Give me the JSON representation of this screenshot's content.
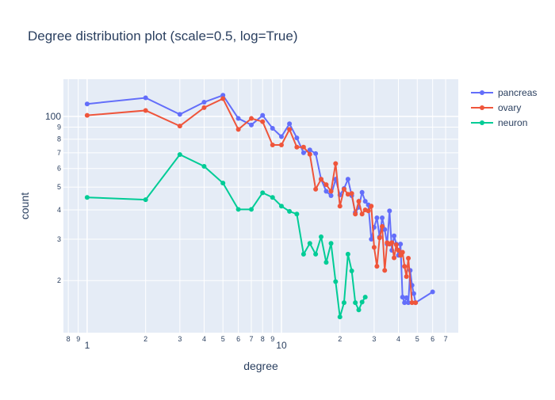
{
  "chart_data": {
    "type": "line",
    "title": "Degree distribution plot (scale=0.5, log=True)",
    "x_label": "degree",
    "y_label": "count",
    "xlog": true,
    "ylog": true,
    "grid": true,
    "legend": "top-right",
    "xlim": [
      0.755,
      81.3
    ],
    "ylim": [
      12,
      144
    ],
    "xticks": [
      {
        "value": 0.8,
        "label": "8"
      },
      {
        "value": 0.9,
        "label": "9"
      },
      1,
      {
        "value": 2,
        "label": "2"
      },
      {
        "value": 3,
        "label": "3"
      },
      {
        "value": 4,
        "label": "4"
      },
      {
        "value": 5,
        "label": "5"
      },
      {
        "value": 6,
        "label": "6"
      },
      {
        "value": 7,
        "label": "7"
      },
      {
        "value": 8,
        "label": "8"
      },
      {
        "value": 9,
        "label": "9"
      },
      10,
      {
        "value": 20,
        "label": "2"
      },
      {
        "value": 30,
        "label": "3"
      },
      {
        "value": 40,
        "label": "4"
      },
      {
        "value": 50,
        "label": "5"
      },
      {
        "value": 60,
        "label": "6"
      },
      {
        "value": 70,
        "label": "7"
      }
    ],
    "yticks": [
      {
        "value": 20,
        "label": "2"
      },
      {
        "value": 30,
        "label": "3"
      },
      {
        "value": 40,
        "label": "4"
      },
      {
        "value": 50,
        "label": "5"
      },
      {
        "value": 60,
        "label": "6"
      },
      {
        "value": 70,
        "label": "7"
      },
      {
        "value": 80,
        "label": "8"
      },
      {
        "value": 90,
        "label": "9"
      },
      100
    ],
    "series": [
      {
        "name": "pancreas",
        "color": "#636efa",
        "x": [
          1,
          2,
          3,
          4,
          5,
          6,
          7,
          8,
          9,
          10,
          11,
          12,
          13,
          14,
          15,
          16,
          17,
          18,
          19,
          20,
          21,
          22,
          23,
          24,
          25,
          26,
          27,
          28,
          29,
          30,
          31,
          32,
          33,
          34,
          35,
          36,
          37,
          38,
          39,
          40,
          41,
          42,
          43,
          44,
          45,
          46,
          47,
          48,
          49,
          60
        ],
        "values": [
          113,
          120,
          102,
          115,
          123,
          98,
          92,
          101,
          89,
          82,
          93,
          81,
          70,
          72,
          69.5,
          54,
          48,
          46,
          54,
          46.3,
          49.3,
          54,
          46,
          39,
          41,
          47.5,
          43.5,
          42,
          30,
          33.7,
          37,
          30.7,
          37,
          33,
          28.6,
          39.6,
          26.9,
          31,
          28.6,
          25.6,
          28.6,
          17,
          16.1,
          16.9,
          16.1,
          22.1,
          19.1,
          17.6,
          16.1,
          17.9
        ]
      },
      {
        "name": "ovary",
        "color": "#EF553B",
        "x": [
          1,
          2,
          3,
          4,
          5,
          6,
          7,
          8,
          9,
          10,
          11,
          12,
          13,
          14,
          15,
          16,
          17,
          18,
          19,
          20,
          21,
          22,
          23,
          24,
          25,
          26,
          27,
          28,
          29,
          30,
          31,
          32,
          33,
          34,
          35,
          36,
          37,
          38,
          39,
          40,
          41,
          42,
          43,
          44,
          45,
          47,
          49
        ],
        "values": [
          101,
          106,
          91,
          109,
          119,
          88,
          98,
          95,
          75.6,
          75.6,
          88,
          74,
          74,
          69,
          49,
          54,
          51.2,
          48,
          63,
          41.5,
          49,
          46.6,
          47,
          38.4,
          43.5,
          38.4,
          40,
          39.6,
          41.5,
          27.7,
          23,
          30.4,
          34,
          22.1,
          29,
          28.6,
          29,
          25,
          28.4,
          26.9,
          25.6,
          26.4,
          23,
          20.8,
          24.9,
          16.1,
          16.1
        ]
      },
      {
        "name": "neuron",
        "color": "#00cc96",
        "x": [
          1,
          2,
          3,
          4,
          5,
          6,
          7,
          8,
          9,
          10,
          11,
          12,
          13,
          14,
          15,
          16,
          17,
          18,
          19,
          20,
          21,
          22,
          23,
          24,
          25,
          26,
          27
        ],
        "values": [
          45.2,
          44.2,
          68.8,
          61.3,
          52,
          40.2,
          40.2,
          47.3,
          45.2,
          41.5,
          39.4,
          38.4,
          25.9,
          28.8,
          25.9,
          30.7,
          23.9,
          28.8,
          19.8,
          14,
          16.1,
          25.9,
          22,
          16.1,
          15,
          16.2,
          17
        ]
      }
    ]
  }
}
